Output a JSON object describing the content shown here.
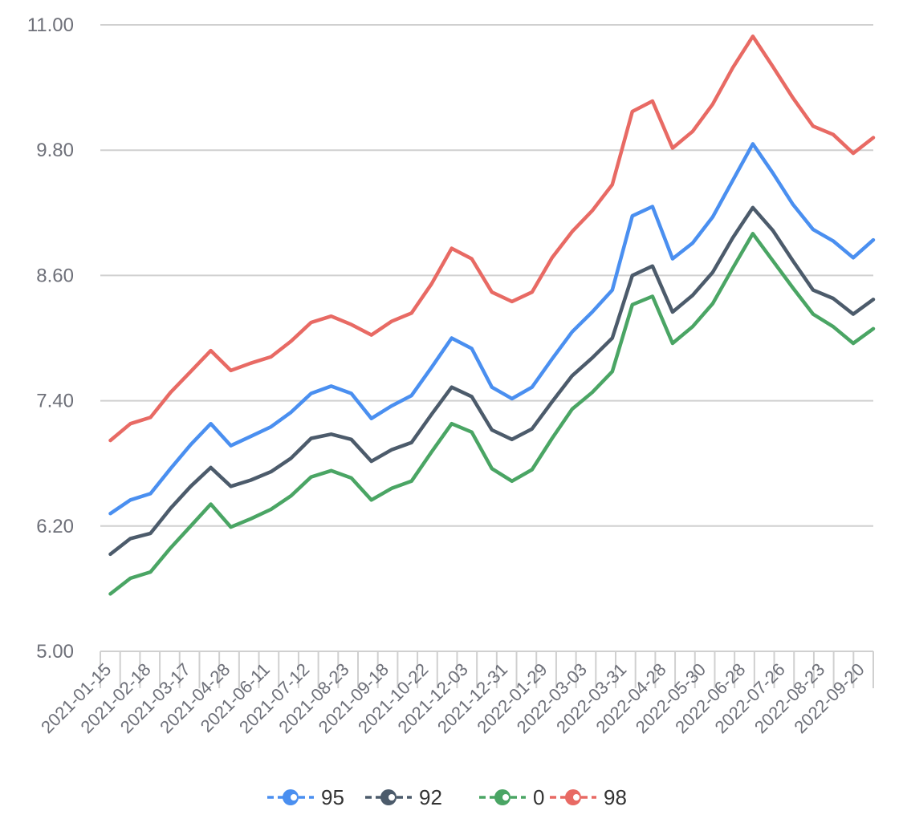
{
  "chart_data": {
    "type": "line",
    "title": "",
    "xlabel": "",
    "ylabel": "",
    "ylim": [
      5.0,
      11.0
    ],
    "yticks": [
      "5.00",
      "6.20",
      "7.40",
      "8.60",
      "9.80",
      "11.00"
    ],
    "grid": true,
    "legend_position": "bottom",
    "x_tick_labels": [
      "2021-01-15",
      "2021-02-18",
      "2021-03-17",
      "2021-04-28",
      "2021-06-11",
      "2021-07-12",
      "2021-08-23",
      "2021-09-18",
      "2021-10-22",
      "2021-12-03",
      "2021-12-31",
      "2022-01-29",
      "2022-03-03",
      "2022-03-31",
      "2022-04-28",
      "2022-05-30",
      "2022-06-28",
      "2022-07-26",
      "2022-08-23",
      "2022-09-20"
    ],
    "series": [
      {
        "name": "95",
        "color": "#4a8ff0",
        "values": [
          6.32,
          6.45,
          6.51,
          6.75,
          6.98,
          7.18,
          6.97,
          7.06,
          7.15,
          7.29,
          7.47,
          7.54,
          7.47,
          7.23,
          7.35,
          7.45,
          7.72,
          8.0,
          7.9,
          7.53,
          7.42,
          7.53,
          7.8,
          8.06,
          8.25,
          8.46,
          9.17,
          9.26,
          8.76,
          8.91,
          9.16,
          9.51,
          9.86,
          9.58,
          9.28,
          9.04,
          8.93,
          8.77,
          8.94
        ]
      },
      {
        "name": "92",
        "color": "#4c5b6b",
        "values": [
          5.93,
          6.08,
          6.13,
          6.37,
          6.58,
          6.76,
          6.58,
          6.64,
          6.72,
          6.85,
          7.04,
          7.08,
          7.03,
          6.82,
          6.93,
          7.0,
          7.27,
          7.53,
          7.44,
          7.12,
          7.03,
          7.13,
          7.39,
          7.64,
          7.81,
          8.0,
          8.6,
          8.69,
          8.25,
          8.41,
          8.63,
          8.96,
          9.25,
          9.03,
          8.74,
          8.46,
          8.38,
          8.23,
          8.37
        ]
      },
      {
        "name": "0",
        "color": "#4aa564",
        "values": [
          5.55,
          5.7,
          5.76,
          5.99,
          6.2,
          6.41,
          6.19,
          6.27,
          6.36,
          6.49,
          6.67,
          6.73,
          6.66,
          6.45,
          6.56,
          6.63,
          6.91,
          7.18,
          7.1,
          6.75,
          6.63,
          6.74,
          7.04,
          7.32,
          7.48,
          7.68,
          8.32,
          8.4,
          7.95,
          8.11,
          8.33,
          8.67,
          9.0,
          8.74,
          8.48,
          8.23,
          8.11,
          7.95,
          8.09
        ]
      },
      {
        "name": "98",
        "color": "#e86a64",
        "values": [
          7.02,
          7.18,
          7.24,
          7.48,
          7.68,
          7.88,
          7.69,
          7.76,
          7.82,
          7.97,
          8.15,
          8.21,
          8.13,
          8.03,
          8.16,
          8.24,
          8.52,
          8.86,
          8.76,
          8.44,
          8.35,
          8.44,
          8.77,
          9.02,
          9.22,
          9.47,
          10.17,
          10.27,
          9.82,
          9.98,
          10.24,
          10.59,
          10.89,
          10.6,
          10.3,
          10.03,
          9.95,
          9.77,
          9.92
        ]
      }
    ]
  }
}
